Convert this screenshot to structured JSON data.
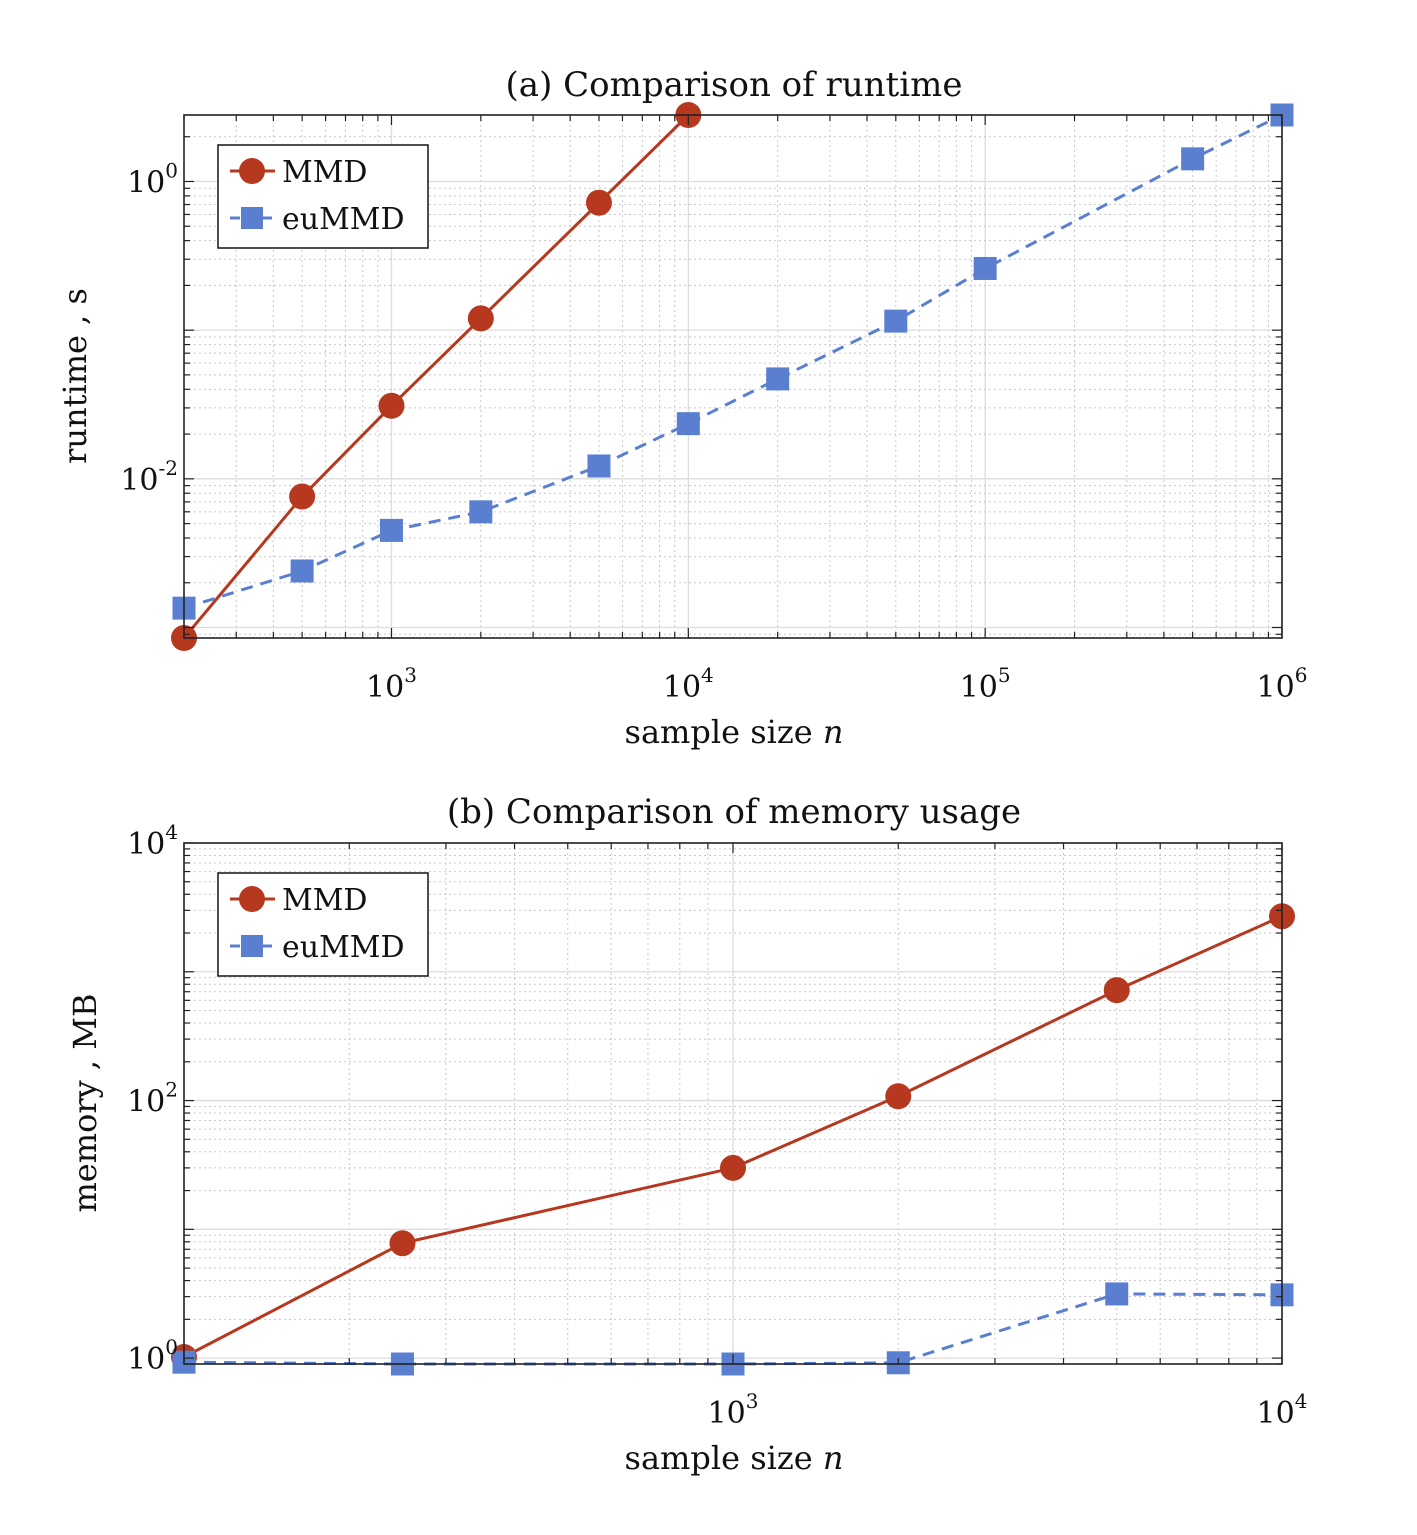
{
  "colors": {
    "mmd": "#b5381f",
    "eummd": "#5b7fd0"
  },
  "legend": {
    "mmd_label": "MMD",
    "eummd_label": "euMMD"
  },
  "chart_data": [
    {
      "type": "line",
      "title": "(a) Comparison of runtime",
      "xlabel": "sample size",
      "xlabel_var": "n",
      "ylabel": "runtime , s",
      "xscale": "log",
      "yscale": "log",
      "xlim": [
        200,
        1000000
      ],
      "ylim": [
        0.00085,
        2.8
      ],
      "xticks": [
        {
          "base": "10",
          "exp": "3",
          "value": 1000
        },
        {
          "base": "10",
          "exp": "4",
          "value": 10000
        },
        {
          "base": "10",
          "exp": "5",
          "value": 100000
        },
        {
          "base": "10",
          "exp": "6",
          "value": 1000000
        }
      ],
      "yticks": [
        {
          "base": "10",
          "exp": "-2",
          "value": 0.01
        },
        {
          "base": "10",
          "exp": "0",
          "value": 1
        }
      ],
      "grid": true,
      "legend_position": "top-left",
      "series": [
        {
          "name": "MMD",
          "style": "solid",
          "marker": "circle",
          "x": [
            200,
            500,
            1000,
            2000,
            5000,
            10000
          ],
          "y": [
            0.00085,
            0.0076,
            0.031,
            0.12,
            0.72,
            2.8
          ]
        },
        {
          "name": "euMMD",
          "style": "dashed",
          "marker": "square",
          "x": [
            200,
            500,
            1000,
            2000,
            5000,
            10000,
            20000,
            50000,
            100000,
            500000,
            1000000
          ],
          "y": [
            0.00135,
            0.0024,
            0.0045,
            0.006,
            0.0122,
            0.0235,
            0.047,
            0.115,
            0.26,
            1.42,
            2.8
          ]
        }
      ]
    },
    {
      "type": "line",
      "title": "(b) Comparison of memory usage",
      "xlabel": "sample size",
      "xlabel_var": "n",
      "ylabel": "memory , MB",
      "xscale": "log",
      "yscale": "log",
      "xlim": [
        100,
        10000
      ],
      "ylim": [
        0.9,
        10000
      ],
      "xticks": [
        {
          "base": "10",
          "exp": "3",
          "value": 1000
        },
        {
          "base": "10",
          "exp": "4",
          "value": 10000
        }
      ],
      "yticks": [
        {
          "base": "10",
          "exp": "0",
          "value": 1
        },
        {
          "base": "10",
          "exp": "2",
          "value": 100
        },
        {
          "base": "10",
          "exp": "4",
          "value": 10000
        }
      ],
      "grid": true,
      "legend_position": "top-left",
      "series": [
        {
          "name": "MMD",
          "style": "solid",
          "marker": "circle",
          "x": [
            100,
            250,
            1000,
            2000,
            5000,
            10000
          ],
          "y": [
            1.02,
            7.8,
            30,
            108,
            720,
            2700
          ]
        },
        {
          "name": "euMMD",
          "style": "dashed",
          "marker": "square",
          "x": [
            100,
            250,
            1000,
            2000,
            5000,
            10000
          ],
          "y": [
            0.93,
            0.9,
            0.9,
            0.92,
            3.15,
            3.1
          ]
        }
      ]
    }
  ]
}
